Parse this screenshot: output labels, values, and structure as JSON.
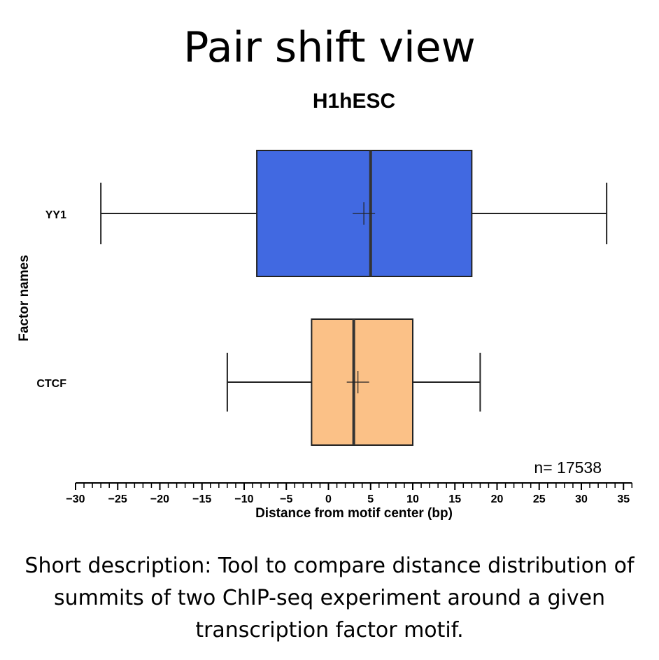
{
  "slide": {
    "title": "Pair shift view",
    "description": "Short description: Tool to compare distance distribution of summits of two ChIP-seq experiment around a given transcription factor motif."
  },
  "chart_data": {
    "type": "boxplot",
    "title": "H1hESC",
    "xlabel": "Distance from motif center (bp)",
    "ylabel": "Factor names",
    "xlim": [
      -30,
      36
    ],
    "xticks": [
      -30,
      -25,
      -20,
      -15,
      -10,
      -5,
      0,
      5,
      10,
      15,
      20,
      25,
      30,
      35
    ],
    "xtick_labels": [
      "−30",
      "−25",
      "−20",
      "−15",
      "−10",
      "−5",
      "0",
      "5",
      "10",
      "15",
      "20",
      "25",
      "30",
      "35"
    ],
    "minor_tick_step": 1,
    "annotation": "n= 17538",
    "series": [
      {
        "name": "YY1",
        "color": "#4169E1",
        "whisker_low": -27,
        "q1": -8.5,
        "median": 5,
        "q3": 17,
        "whisker_high": 33,
        "mean": 4.2
      },
      {
        "name": "CTCF",
        "color": "#FBC187",
        "whisker_low": -12,
        "q1": -2,
        "median": 3,
        "q3": 10,
        "whisker_high": 18,
        "mean": 3.5
      }
    ]
  }
}
